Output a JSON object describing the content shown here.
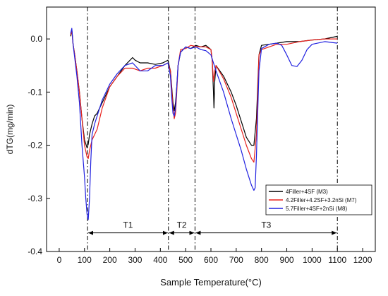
{
  "chart_data": {
    "type": "line",
    "title": "",
    "xlabel": "Sample Temperature(°C)",
    "ylabel": "dTG(mg/min)",
    "xlim": [
      -50,
      1250
    ],
    "ylim": [
      -0.4,
      0.06
    ],
    "xticks": [
      0,
      100,
      200,
      300,
      400,
      500,
      600,
      700,
      800,
      900,
      1000,
      1100,
      1200
    ],
    "yticks": [
      0.0,
      -0.1,
      -0.2,
      -0.3,
      -0.4
    ],
    "ytick_labels": [
      "0.0",
      "-0.1",
      "-0.2",
      "-0.3",
      "-0.4"
    ],
    "legend_position": "lower-right",
    "series": [
      {
        "name": "4Filler+4SF (M3)",
        "color": "#000000",
        "x": [
          45,
          50,
          55,
          60,
          70,
          80,
          90,
          100,
          110,
          115,
          120,
          130,
          140,
          150,
          170,
          200,
          230,
          260,
          290,
          300,
          320,
          350,
          380,
          410,
          430,
          440,
          445,
          450,
          455,
          460,
          465,
          470,
          480,
          500,
          520,
          540,
          560,
          580,
          600,
          605,
          610,
          612,
          615,
          620,
          650,
          680,
          700,
          720,
          740,
          760,
          770,
          780,
          790,
          800,
          830,
          860,
          900,
          950,
          1000,
          1050,
          1100
        ],
        "y": [
          0.005,
          0.018,
          -0.01,
          -0.025,
          -0.06,
          -0.1,
          -0.15,
          -0.19,
          -0.205,
          -0.198,
          -0.18,
          -0.16,
          -0.145,
          -0.14,
          -0.12,
          -0.09,
          -0.07,
          -0.05,
          -0.035,
          -0.04,
          -0.045,
          -0.045,
          -0.048,
          -0.045,
          -0.04,
          -0.06,
          -0.09,
          -0.12,
          -0.135,
          -0.12,
          -0.09,
          -0.05,
          -0.025,
          -0.015,
          -0.018,
          -0.012,
          -0.015,
          -0.012,
          -0.02,
          -0.04,
          -0.1,
          -0.13,
          -0.08,
          -0.05,
          -0.07,
          -0.1,
          -0.125,
          -0.155,
          -0.185,
          -0.2,
          -0.2,
          -0.15,
          -0.03,
          -0.012,
          -0.01,
          -0.008,
          -0.005,
          -0.005,
          -0.002,
          0.0,
          0.005
        ]
      },
      {
        "name": "4.2Filler+4.2SF+3.2nSi (M7)",
        "color": "#e8201c",
        "x": [
          45,
          50,
          55,
          60,
          70,
          80,
          90,
          100,
          110,
          115,
          120,
          130,
          140,
          150,
          170,
          200,
          230,
          260,
          290,
          320,
          350,
          380,
          410,
          430,
          440,
          445,
          450,
          455,
          460,
          465,
          470,
          480,
          500,
          520,
          540,
          560,
          580,
          600,
          605,
          610,
          615,
          620,
          650,
          680,
          700,
          720,
          740,
          760,
          770,
          780,
          790,
          800,
          830,
          860,
          900,
          950,
          1000,
          1050,
          1100
        ],
        "y": [
          0.008,
          0.015,
          -0.01,
          -0.025,
          -0.06,
          -0.1,
          -0.15,
          -0.2,
          -0.222,
          -0.225,
          -0.21,
          -0.19,
          -0.18,
          -0.17,
          -0.13,
          -0.09,
          -0.07,
          -0.055,
          -0.055,
          -0.06,
          -0.055,
          -0.055,
          -0.05,
          -0.045,
          -0.06,
          -0.095,
          -0.13,
          -0.15,
          -0.14,
          -0.1,
          -0.05,
          -0.02,
          -0.018,
          -0.012,
          -0.014,
          -0.015,
          -0.015,
          -0.02,
          -0.04,
          -0.08,
          -0.06,
          -0.05,
          -0.075,
          -0.11,
          -0.14,
          -0.17,
          -0.2,
          -0.225,
          -0.232,
          -0.18,
          -0.03,
          -0.02,
          -0.015,
          -0.01,
          -0.01,
          -0.005,
          -0.002,
          0.0,
          0.0
        ]
      },
      {
        "name": "5.7Filler+4SF+2nSi (M8)",
        "color": "#2020e0",
        "x": [
          45,
          50,
          55,
          60,
          70,
          80,
          90,
          100,
          105,
          110,
          115,
          120,
          125,
          130,
          140,
          150,
          170,
          200,
          230,
          260,
          290,
          320,
          350,
          380,
          410,
          430,
          440,
          445,
          450,
          455,
          460,
          465,
          470,
          480,
          500,
          520,
          540,
          560,
          580,
          600,
          620,
          650,
          680,
          700,
          720,
          740,
          760,
          770,
          775,
          780,
          790,
          800,
          830,
          860,
          880,
          900,
          920,
          940,
          960,
          980,
          1000,
          1050,
          1100
        ],
        "y": [
          0.01,
          0.02,
          -0.01,
          -0.03,
          -0.07,
          -0.12,
          -0.2,
          -0.26,
          -0.3,
          -0.33,
          -0.34,
          -0.3,
          -0.23,
          -0.18,
          -0.16,
          -0.145,
          -0.115,
          -0.085,
          -0.065,
          -0.05,
          -0.045,
          -0.06,
          -0.06,
          -0.05,
          -0.05,
          -0.045,
          -0.07,
          -0.11,
          -0.14,
          -0.145,
          -0.13,
          -0.09,
          -0.05,
          -0.025,
          -0.015,
          -0.018,
          -0.015,
          -0.02,
          -0.022,
          -0.03,
          -0.06,
          -0.1,
          -0.15,
          -0.18,
          -0.21,
          -0.245,
          -0.275,
          -0.285,
          -0.28,
          -0.22,
          -0.06,
          -0.018,
          -0.01,
          -0.008,
          -0.012,
          -0.03,
          -0.05,
          -0.052,
          -0.04,
          -0.02,
          -0.01,
          -0.005,
          -0.008
        ]
      }
    ],
    "vertical_lines": [
      112,
      432,
      537,
      1100
    ],
    "annotations": [
      {
        "label": "T1",
        "x_start": 112,
        "x_end": 432,
        "y": -0.365
      },
      {
        "label": "T2",
        "x_start": 432,
        "x_end": 537,
        "y": -0.365
      },
      {
        "label": "T3",
        "x_start": 537,
        "x_end": 1100,
        "y": -0.365
      }
    ]
  }
}
